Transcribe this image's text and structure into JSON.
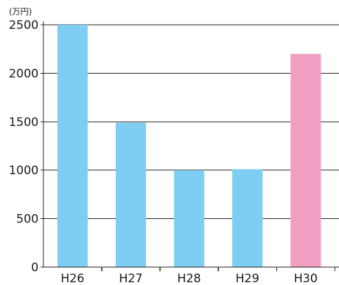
{
  "chart_data": {
    "type": "bar",
    "unit": "(万円)",
    "categories": [
      "H26",
      "H27",
      "H28",
      "H29",
      "H30"
    ],
    "values": [
      2500,
      1490,
      1000,
      1010,
      2200
    ],
    "bar_colors": [
      "#7ecef4",
      "#7ecef4",
      "#7ecef4",
      "#7ecef4",
      "#f19ec2"
    ],
    "ylim": [
      0,
      2500
    ],
    "yticks": [
      0,
      500,
      1000,
      1500,
      2000,
      2500
    ],
    "grid": true,
    "title": "",
    "xlabel": "",
    "ylabel": ""
  }
}
